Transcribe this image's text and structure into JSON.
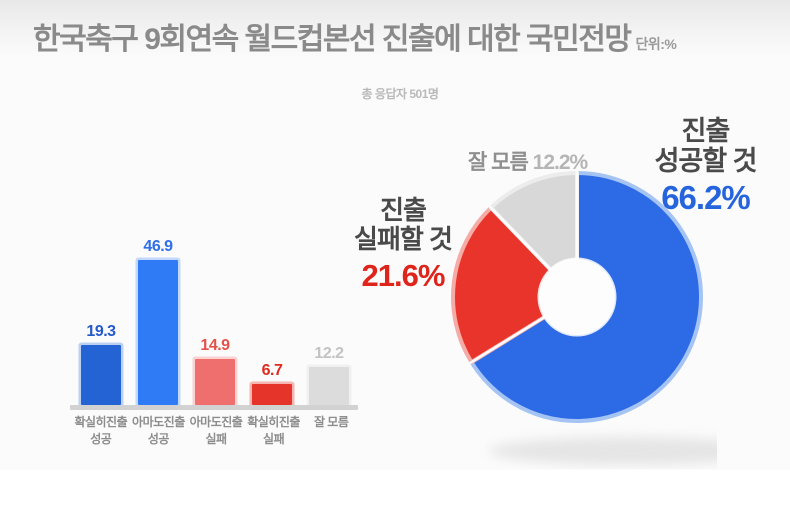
{
  "header": {
    "title": "한국축구 9회연속 월드컵본선 진출에 대한 국민전망",
    "unit_label": "단위:%",
    "subtitle": "총 응답자 501명"
  },
  "colors": {
    "title_gray": "#8a8a8a",
    "axis_baseline": "#d2d2d2",
    "accent_blue": "#2564dd",
    "accent_red": "#df241b"
  },
  "chart_data": [
    {
      "type": "bar",
      "title": "",
      "xlabel": "",
      "ylabel": "",
      "ylim": [
        0,
        50
      ],
      "grid": false,
      "categories": [
        "확실히진출\n성공",
        "아마도진출\n성공",
        "아마도진출\n실패",
        "확실히진출\n실패",
        "잘 모름"
      ],
      "values": [
        19.3,
        46.9,
        14.9,
        6.7,
        12.2
      ],
      "bar_colors": [
        "#2363d3",
        "#2f7bf6",
        "#ee6f6d",
        "#e5352b",
        "#dcdcdc"
      ],
      "bar_rim_colors": [
        "#bcd0f2",
        "#c2d9fb",
        "#f9d2d1",
        "#f6b5b0",
        "#f0f0f0"
      ],
      "value_label_colors": [
        "#2359cb",
        "#2f6fe8",
        "#e4524c",
        "#e0291f",
        "#c3c3c3"
      ]
    },
    {
      "type": "pie",
      "donut": true,
      "start_angle_deg": 0,
      "direction": "clockwise",
      "slices": [
        {
          "key": "success",
          "label": "진출 성공할 것",
          "value": 66.2,
          "color": "#2d6be6",
          "rim": "#a5c4f4"
        },
        {
          "key": "fail",
          "label": "진출 실패할 것",
          "value": 21.6,
          "color": "#e8342b",
          "rim": "#f5aba6"
        },
        {
          "key": "unknown",
          "label": "잘 모름",
          "value": 12.2,
          "color": "#d8d8d8",
          "rim": "#ececec"
        }
      ]
    }
  ],
  "donut_labels": {
    "success": {
      "line1": "진출",
      "line2": "성공할 것",
      "value": "66.2%"
    },
    "fail": {
      "line1": "진출",
      "line2": "실패할 것",
      "value": "21.6%"
    },
    "unknown": {
      "text": "잘 모름",
      "value": "12.2%"
    }
  }
}
